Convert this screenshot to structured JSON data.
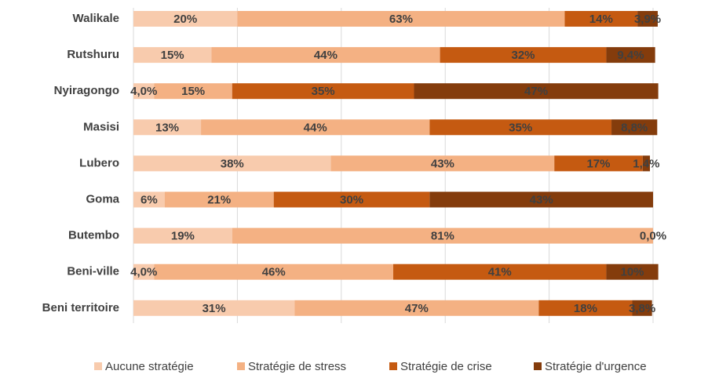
{
  "chart_data": {
    "type": "stacked_bar_horizontal",
    "categories": [
      "Walikale",
      "Rutshuru",
      "Nyiragongo",
      "Masisi",
      "Lubero",
      "Goma",
      "Butembo",
      "Beni-ville",
      "Beni territoire"
    ],
    "xlim": [
      0,
      100
    ],
    "xticks": [
      0,
      20,
      40,
      60,
      80,
      100
    ],
    "grid": true,
    "legend": "bottom",
    "series": [
      {
        "name": "Aucune stratégie",
        "color": "#f8cbad",
        "values": [
          20,
          15,
          4.0,
          13,
          38,
          6,
          19,
          4.0,
          31
        ],
        "value_labels": [
          "20%",
          "15%",
          "4,0%",
          "13%",
          "38%",
          "6%",
          "19%",
          "4,0%",
          "31%"
        ]
      },
      {
        "name": "Stratégie de stress",
        "color": "#f4b183",
        "values": [
          63,
          44,
          15,
          44,
          43,
          21,
          81,
          46,
          47
        ],
        "value_labels": [
          "63%",
          "44%",
          "15%",
          "44%",
          "43%",
          "21%",
          "81%",
          "46%",
          "47%"
        ]
      },
      {
        "name": "Stratégie de crise",
        "color": "#c55a11",
        "values": [
          14,
          32,
          35,
          35,
          17,
          30,
          null,
          41,
          18
        ],
        "value_labels": [
          "14%",
          "32%",
          "35%",
          "35%",
          "17%",
          "30%",
          null,
          "41%",
          "18%"
        ]
      },
      {
        "name": "Stratégie d'urgence",
        "color": "#843c0c",
        "values": [
          3.9,
          9.4,
          47,
          8.8,
          1.4,
          43,
          0.0,
          10,
          3.8
        ],
        "value_labels": [
          "3,9%",
          "9,4%",
          "47%",
          "8,8%",
          "1,4%",
          "43%",
          "0,0%",
          "10%",
          "3,8%"
        ]
      }
    ]
  }
}
